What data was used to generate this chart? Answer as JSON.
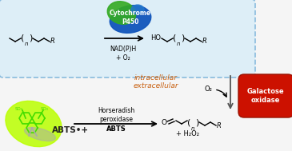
{
  "background_color": "#f5f5f5",
  "box_color": "#ddeef7",
  "box_edge_color": "#88bbdd",
  "intracellular_label": "intracellular",
  "extracellular_label": "extracellular",
  "nadph_label": "NAD(P)H\n+ O₂",
  "cytochrome_label": "Cytochrome\nP450",
  "galactose_label": "Galactose\noxidase",
  "hrp_label": "Horseradish\nperoxidase",
  "abts_label": "ABTS",
  "abts_ox_label": "ABTS•+",
  "o2_label": "O₂",
  "h2o2_label": "+ H₂O₂",
  "fig_width": 3.65,
  "fig_height": 1.89,
  "dpi": 100
}
